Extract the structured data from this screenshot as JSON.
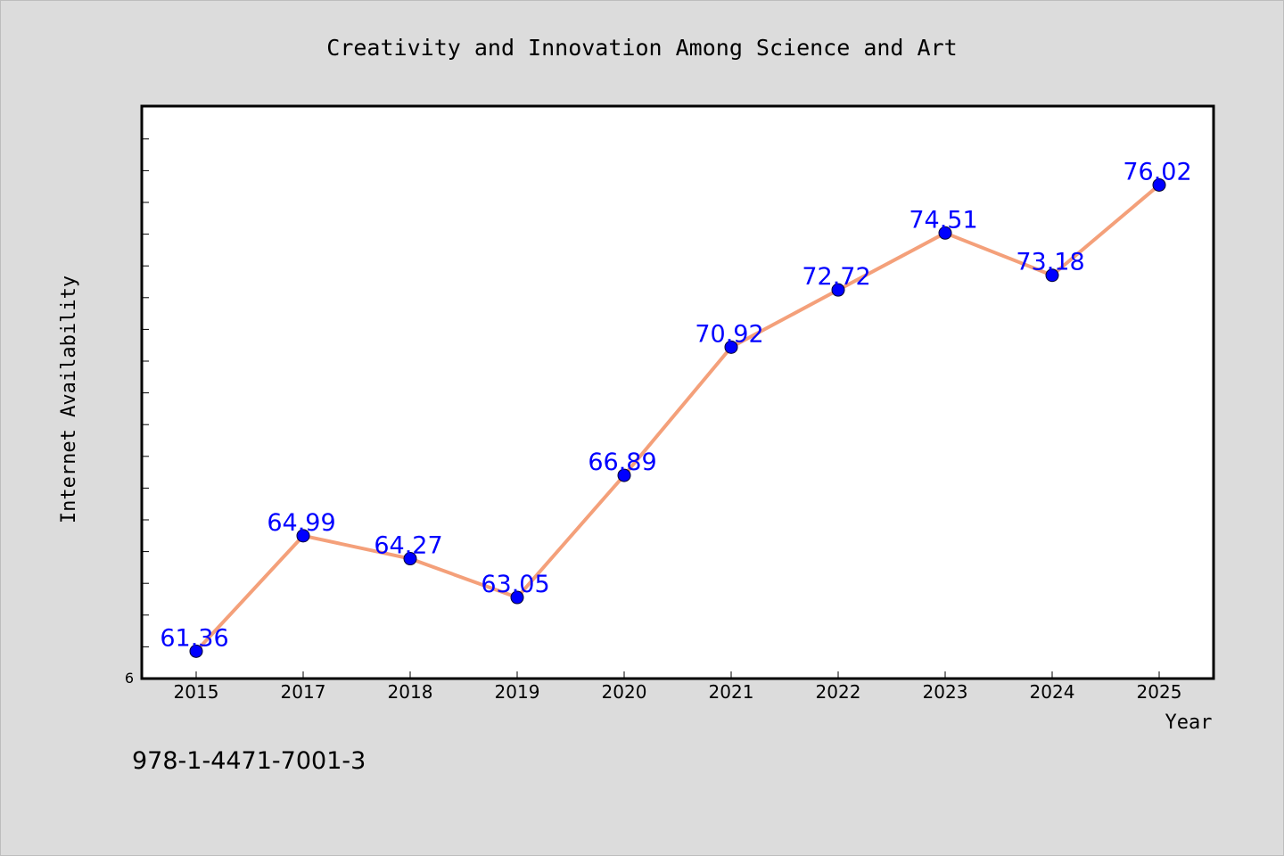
{
  "chart_data": {
    "type": "line",
    "title": "Creativity and Innovation Among Science and Art",
    "xlabel": "Year",
    "ylabel": "Internet Availability",
    "categories": [
      "2015",
      "2017",
      "2018",
      "2019",
      "2020",
      "2021",
      "2022",
      "2023",
      "2024",
      "2025"
    ],
    "series": [
      {
        "values": [
          61.36,
          64.99,
          64.27,
          63.05,
          66.89,
          70.92,
          72.72,
          74.51,
          73.18,
          76.02
        ],
        "labels": [
          "61.36",
          "64.99",
          "64.27",
          "63.05",
          "66.89",
          "70.92",
          "72.72",
          "74.51",
          "73.18",
          "76.02"
        ]
      }
    ],
    "y_tick_label": "6",
    "ylim": [
      60.5,
      78.5
    ],
    "grid": false,
    "colors": {
      "line": "#f4a07a",
      "marker": "#0000ff",
      "data_label": "#0000ff"
    }
  },
  "footer_text": "978-1-4471-7001-3"
}
